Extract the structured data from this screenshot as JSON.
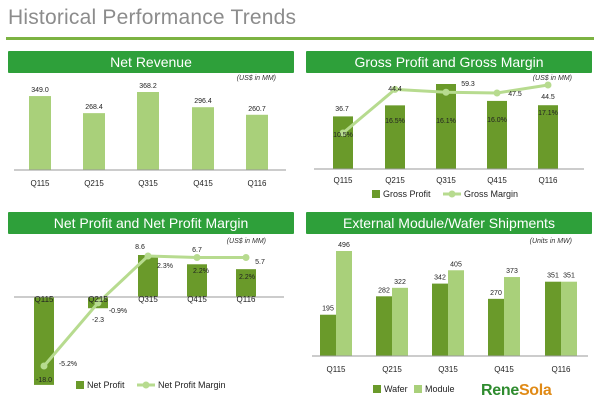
{
  "slide": {
    "title": "Historical Performance Trends"
  },
  "colors": {
    "bar_dark": "#6a9a2a",
    "bar_light": "#a9d07a",
    "line": "#b7db8f",
    "header": "#2ea03a"
  },
  "logo": {
    "part1": "Rene",
    "part2": "Sola"
  },
  "chart_data": [
    {
      "id": "net_revenue",
      "type": "bar",
      "title": "Net Revenue",
      "unit_note": "(US$ in MM)",
      "categories": [
        "Q115",
        "Q215",
        "Q315",
        "Q415",
        "Q116"
      ],
      "series": [
        {
          "values": [
            349.0,
            268.4,
            368.2,
            296.4,
            260.7
          ],
          "labels": [
            "349.0",
            "268.4",
            "368.2",
            "296.4",
            "260.7"
          ]
        }
      ],
      "ylim": [
        0,
        400
      ],
      "legend": "none"
    },
    {
      "id": "gross_profit",
      "type": "bar+line",
      "title": "Gross  Profit and Gross Margin",
      "unit_note": "(US$ in MM)",
      "categories": [
        "Q115",
        "Q215",
        "Q315",
        "Q415",
        "Q116"
      ],
      "series": [
        {
          "name": "Gross Profit",
          "type": "bar",
          "values": [
            36.7,
            44.4,
            59.3,
            47.5,
            44.5
          ],
          "labels": [
            "36.7",
            "44.4",
            "59.3",
            "47.5",
            "44.5"
          ]
        },
        {
          "name": "Gross Margin",
          "type": "line",
          "values": [
            10.5,
            16.5,
            16.1,
            16.0,
            17.1
          ],
          "labels": [
            "10.5%",
            "16.5%",
            "16.1%",
            "16.0%",
            "17.1%"
          ]
        }
      ],
      "legend": "bottom"
    },
    {
      "id": "net_profit",
      "type": "bar+line",
      "title": "Net Profit and Net Profit Margin",
      "unit_note": "(US$ in MM)",
      "categories": [
        "Q115",
        "Q215",
        "Q315",
        "Q415",
        "Q116"
      ],
      "series": [
        {
          "name": "Net Profit",
          "type": "bar",
          "values": [
            -18.0,
            -2.3,
            8.6,
            6.7,
            5.7
          ],
          "labels": [
            "-18.0",
            "-2.3",
            "8.6",
            "6.7",
            "5.7"
          ]
        },
        {
          "name": "Net Profit Margin",
          "type": "line",
          "values": [
            -5.2,
            -0.9,
            2.3,
            2.2,
            2.2
          ],
          "labels": [
            "-5.2%",
            "-0.9%",
            "2.3%",
            "2.2%",
            "2.2%"
          ]
        }
      ],
      "legend": "bottom"
    },
    {
      "id": "shipments",
      "type": "grouped-bar",
      "title": "External Module/Wafer Shipments",
      "unit_note": "(Units in MW)",
      "categories": [
        "Q115",
        "Q215",
        "Q315",
        "Q415",
        "Q116"
      ],
      "series": [
        {
          "name": "Wafer",
          "values": [
            195,
            282,
            342,
            270,
            351
          ],
          "labels": [
            "195",
            "282",
            "342",
            "270",
            "351"
          ]
        },
        {
          "name": "Module",
          "values": [
            496,
            322,
            405,
            373,
            351
          ],
          "labels": [
            "496",
            "322",
            "405",
            "373",
            "351"
          ]
        }
      ],
      "ylim": [
        0,
        520
      ],
      "legend": "bottom"
    }
  ]
}
